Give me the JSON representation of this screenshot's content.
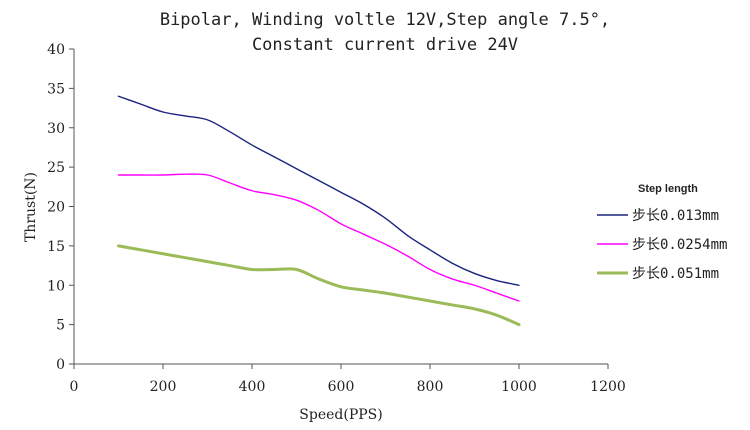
{
  "chart_data": {
    "type": "line",
    "title_lines": [
      "Bipolar, Winding voltle 12V,Step angle 7.5°,",
      "Constant current drive 24V"
    ],
    "xlabel": "Speed(PPS)",
    "ylabel": "Thrust(N)",
    "xlim": [
      0,
      1200
    ],
    "ylim": [
      0,
      40
    ],
    "xticks": [
      0,
      200,
      400,
      600,
      800,
      1000,
      1200
    ],
    "yticks": [
      0,
      5,
      10,
      15,
      20,
      25,
      30,
      35,
      40
    ],
    "grid": false,
    "legend_title": "Step length",
    "legend_position": "right",
    "series": [
      {
        "name": "步长0.013mm",
        "color": "#1a237e",
        "x": [
          100,
          150,
          200,
          250,
          300,
          350,
          400,
          450,
          500,
          550,
          600,
          650,
          700,
          750,
          800,
          850,
          900,
          950,
          1000
        ],
        "y": [
          34,
          33,
          32,
          31.5,
          31,
          29.5,
          27.8,
          26.3,
          24.8,
          23.3,
          21.8,
          20.3,
          18.5,
          16.3,
          14.5,
          12.8,
          11.5,
          10.6,
          10
        ]
      },
      {
        "name": "步长0.0254mm",
        "color": "#ff00ff",
        "x": [
          100,
          150,
          200,
          250,
          300,
          350,
          400,
          450,
          500,
          550,
          600,
          650,
          700,
          750,
          800,
          850,
          900,
          950,
          1000
        ],
        "y": [
          24,
          24,
          24,
          24.1,
          24,
          23,
          22,
          21.5,
          20.8,
          19.5,
          17.8,
          16.5,
          15.2,
          13.7,
          12,
          10.8,
          10,
          9,
          8
        ]
      },
      {
        "name": "步长0.051mm",
        "color": "#9bbb59",
        "x": [
          100,
          150,
          200,
          250,
          300,
          350,
          400,
          450,
          500,
          550,
          600,
          650,
          700,
          750,
          800,
          850,
          900,
          950,
          1000
        ],
        "y": [
          15,
          14.5,
          14,
          13.5,
          13,
          12.5,
          12,
          12,
          12,
          10.8,
          9.8,
          9.4,
          9,
          8.5,
          8,
          7.5,
          7,
          6.2,
          5
        ]
      }
    ]
  }
}
